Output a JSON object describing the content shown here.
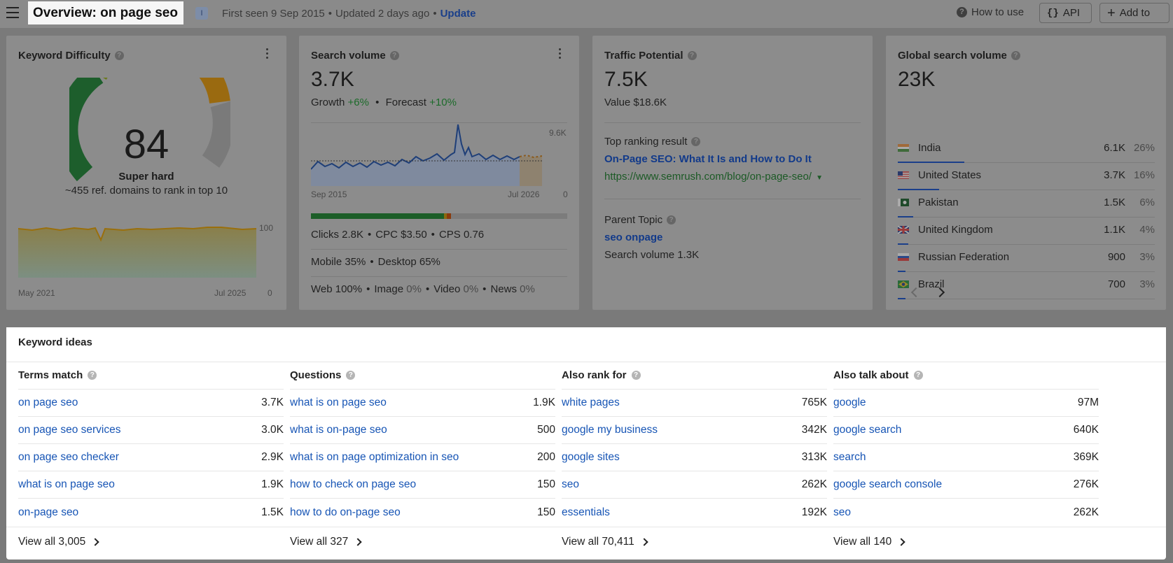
{
  "header": {
    "title": "Overview: on page seo",
    "intent_badge": "I",
    "first_seen": "First seen 9 Sep 2015",
    "updated": "Updated 2 days ago",
    "update_link": "Update",
    "how_to_use": "How to use",
    "api_label": "API",
    "add_to_label": "Add to"
  },
  "kd_card": {
    "title": "Keyword Difficulty",
    "score": "84",
    "label": "Super hard",
    "subtitle": "~455 ref. domains to rank in top 10",
    "chart_x_start": "May 2021",
    "chart_x_end": "Jul 2025",
    "chart_y_top": "100",
    "chart_y_bottom": "0"
  },
  "volume_card": {
    "title": "Search volume",
    "value": "3.7K",
    "growth_label": "Growth",
    "growth_value": "+6%",
    "forecast_label": "Forecast",
    "forecast_value": "+10%",
    "chart_y_top": "9.6K",
    "chart_y_bottom": "0",
    "chart_x_start": "Sep 2015",
    "chart_x_end": "Jul 2026",
    "clicks": "Clicks 2.8K",
    "cpc": "CPC $3.50",
    "cps": "CPS 0.76",
    "mobile": "Mobile 35%",
    "desktop": "Desktop 65%",
    "web_label": "Web",
    "web_value": "100%",
    "image_label": "Image",
    "image_value": "0%",
    "video_label": "Video",
    "video_value": "0%",
    "news_label": "News",
    "news_value": "0%"
  },
  "traffic_card": {
    "title": "Traffic Potential",
    "value": "7.5K",
    "value_line": "Value $18.6K",
    "top_result_label": "Top ranking result",
    "top_result_title": "On-Page SEO: What It Is and How to Do It",
    "top_result_url": "https://www.semrush.com/blog/on-page-seo/",
    "parent_topic_label": "Parent Topic",
    "parent_topic": "seo onpage",
    "parent_volume": "Search volume 1.3K"
  },
  "global_card": {
    "title": "Global search volume",
    "value": "23K",
    "countries": [
      {
        "name": "India",
        "volume": "6.1K",
        "percent": "26%",
        "share": 0.26
      },
      {
        "name": "United States",
        "volume": "3.7K",
        "percent": "16%",
        "share": 0.16
      },
      {
        "name": "Pakistan",
        "volume": "1.5K",
        "percent": "6%",
        "share": 0.06
      },
      {
        "name": "United Kingdom",
        "volume": "1.1K",
        "percent": "4%",
        "share": 0.04
      },
      {
        "name": "Russian Federation",
        "volume": "900",
        "percent": "3%",
        "share": 0.03
      },
      {
        "name": "Brazil",
        "volume": "700",
        "percent": "3%",
        "share": 0.03
      }
    ]
  },
  "keyword_ideas": {
    "title": "Keyword ideas",
    "columns": [
      {
        "heading": "Terms match",
        "rows": [
          {
            "keyword": "on page seo",
            "volume": "3.7K"
          },
          {
            "keyword": "on page seo services",
            "volume": "3.0K"
          },
          {
            "keyword": "on page seo checker",
            "volume": "2.9K"
          },
          {
            "keyword": "what is on page seo",
            "volume": "1.9K"
          },
          {
            "keyword": "on-page seo",
            "volume": "1.5K"
          }
        ],
        "view_all": "View all 3,005"
      },
      {
        "heading": "Questions",
        "rows": [
          {
            "keyword": "what is on page seo",
            "volume": "1.9K"
          },
          {
            "keyword": "what is on-page seo",
            "volume": "500"
          },
          {
            "keyword": "what is on page optimization in seo",
            "volume": "200"
          },
          {
            "keyword": "how to check on page seo",
            "volume": "150"
          },
          {
            "keyword": "how to do on-page seo",
            "volume": "150"
          }
        ],
        "view_all": "View all 327"
      },
      {
        "heading": "Also rank for",
        "rows": [
          {
            "keyword": "white pages",
            "volume": "765K"
          },
          {
            "keyword": "google my business",
            "volume": "342K"
          },
          {
            "keyword": "google sites",
            "volume": "313K"
          },
          {
            "keyword": "seo",
            "volume": "262K"
          },
          {
            "keyword": "essentials",
            "volume": "192K"
          }
        ],
        "view_all": "View all 70,411"
      },
      {
        "heading": "Also talk about",
        "rows": [
          {
            "keyword": "google",
            "volume": "97M"
          },
          {
            "keyword": "google search",
            "volume": "640K"
          },
          {
            "keyword": "search",
            "volume": "369K"
          },
          {
            "keyword": "google search console",
            "volume": "276K"
          },
          {
            "keyword": "seo",
            "volume": "262K"
          }
        ],
        "view_all": "View all 140"
      }
    ]
  }
}
